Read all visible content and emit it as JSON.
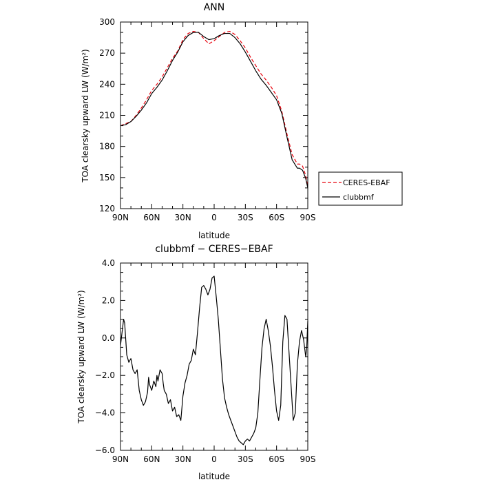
{
  "chart_data": [
    {
      "type": "line",
      "title": "ANN",
      "xlabel": "latitude",
      "ylabel": "TOA clearsky upward LW (W/m²)",
      "xlim": [
        90,
        -90
      ],
      "ylim": [
        120,
        300
      ],
      "x_ticks": [
        {
          "value": 90,
          "label": "90N"
        },
        {
          "value": 60,
          "label": "60N"
        },
        {
          "value": 30,
          "label": "30N"
        },
        {
          "value": 0,
          "label": "0"
        },
        {
          "value": -30,
          "label": "30S"
        },
        {
          "value": -60,
          "label": "60S"
        },
        {
          "value": -90,
          "label": "90S"
        }
      ],
      "y_ticks": [
        {
          "value": 120,
          "label": "120"
        },
        {
          "value": 150,
          "label": "150"
        },
        {
          "value": 180,
          "label": "180"
        },
        {
          "value": 210,
          "label": "210"
        },
        {
          "value": 240,
          "label": "240"
        },
        {
          "value": 270,
          "label": "270"
        },
        {
          "value": 300,
          "label": "300"
        }
      ],
      "legend_position": "right",
      "series": [
        {
          "name": "CERES-EBAF",
          "color": "#e8000b",
          "dash": "dashed",
          "x": [
            90,
            85,
            80,
            75,
            70,
            65,
            60,
            55,
            50,
            45,
            40,
            35,
            30,
            25,
            20,
            15,
            10,
            5,
            0,
            -5,
            -10,
            -15,
            -20,
            -25,
            -30,
            -35,
            -40,
            -45,
            -50,
            -55,
            -60,
            -65,
            -70,
            -75,
            -80,
            -82,
            -85,
            -88,
            -90
          ],
          "y": [
            200,
            202,
            204,
            210,
            217,
            225,
            234,
            240,
            247,
            256,
            265,
            272,
            283,
            289,
            291,
            290,
            284,
            279,
            282,
            286,
            290,
            291,
            288,
            282,
            275,
            266,
            258,
            250,
            244,
            237,
            229,
            214,
            192,
            172,
            163,
            163,
            161,
            152,
            141
          ]
        },
        {
          "name": "clubbmf",
          "color": "#000000",
          "dash": "solid",
          "x": [
            90,
            85,
            80,
            75,
            70,
            65,
            60,
            55,
            50,
            45,
            40,
            35,
            30,
            25,
            20,
            15,
            10,
            5,
            0,
            -5,
            -10,
            -15,
            -20,
            -25,
            -30,
            -35,
            -40,
            -45,
            -50,
            -55,
            -60,
            -65,
            -70,
            -75,
            -80,
            -82,
            -85,
            -88,
            -90
          ],
          "y": [
            200,
            201,
            204,
            209,
            215,
            222,
            231,
            237,
            244,
            253,
            263,
            271,
            281,
            287,
            290,
            290,
            286,
            283,
            284,
            287,
            289,
            289,
            285,
            279,
            271,
            262,
            253,
            245,
            239,
            232,
            225,
            212,
            189,
            167,
            159,
            159,
            157,
            149,
            140
          ]
        }
      ]
    },
    {
      "type": "line",
      "title": "clubbmf − CERES−EBAF",
      "xlabel": "latitude",
      "ylabel": "TOA clearsky upward LW (W/m²)",
      "xlim": [
        90,
        -90
      ],
      "ylim": [
        -6,
        4
      ],
      "x_ticks": [
        {
          "value": 90,
          "label": "90N"
        },
        {
          "value": 60,
          "label": "60N"
        },
        {
          "value": 30,
          "label": "30N"
        },
        {
          "value": 0,
          "label": "0"
        },
        {
          "value": -30,
          "label": "30S"
        },
        {
          "value": -60,
          "label": "60S"
        },
        {
          "value": -90,
          "label": "90S"
        }
      ],
      "y_ticks": [
        {
          "value": -6,
          "label": "−6.0"
        },
        {
          "value": -4,
          "label": "−4.0"
        },
        {
          "value": -2,
          "label": "−2.0"
        },
        {
          "value": 0,
          "label": "0.0"
        },
        {
          "value": 2,
          "label": "2.0"
        },
        {
          "value": 4,
          "label": "4.0"
        }
      ],
      "series": [
        {
          "name": "",
          "color": "#000000",
          "dash": "solid",
          "x": [
            90,
            88.5,
            87,
            86,
            84,
            82,
            80,
            78,
            76,
            74,
            72,
            70,
            68,
            66,
            64,
            63,
            62,
            60,
            58,
            56,
            55,
            54,
            52,
            50,
            49,
            48,
            46,
            44,
            42,
            40,
            38,
            36,
            34,
            32,
            30,
            28,
            26,
            24,
            22,
            20,
            18,
            16,
            14,
            12,
            10,
            8,
            6,
            4,
            2,
            0,
            -2,
            -4,
            -6,
            -8,
            -10,
            -12,
            -14,
            -16,
            -18,
            -20,
            -22,
            -24,
            -26,
            -28,
            -30,
            -32,
            -34,
            -36,
            -38,
            -40,
            -42,
            -44,
            -46,
            -48,
            -50,
            -52,
            -54,
            -56,
            -58,
            -60,
            -62,
            -64,
            -66,
            -68,
            -70,
            -72,
            -74,
            -76,
            -78,
            -80,
            -82,
            -84,
            -86,
            -88,
            -89,
            -90
          ],
          "y": [
            -0.4,
            0.3,
            1.0,
            0.8,
            -0.9,
            -1.3,
            -1.1,
            -1.7,
            -1.9,
            -1.7,
            -2.8,
            -3.3,
            -3.6,
            -3.4,
            -2.9,
            -2.1,
            -2.5,
            -2.8,
            -2.3,
            -2.6,
            -2.0,
            -2.3,
            -1.7,
            -1.9,
            -2.4,
            -2.8,
            -3.0,
            -3.5,
            -3.3,
            -3.9,
            -3.7,
            -4.2,
            -4.1,
            -4.4,
            -3.1,
            -2.4,
            -2.0,
            -1.4,
            -1.2,
            -0.6,
            -0.9,
            0.3,
            1.6,
            2.7,
            2.8,
            2.6,
            2.3,
            2.6,
            3.2,
            3.3,
            2.2,
            1.0,
            -0.6,
            -2.2,
            -3.2,
            -3.7,
            -4.1,
            -4.4,
            -4.7,
            -5.0,
            -5.3,
            -5.5,
            -5.6,
            -5.7,
            -5.5,
            -5.4,
            -5.5,
            -5.3,
            -5.1,
            -4.8,
            -4.0,
            -2.2,
            -0.5,
            0.5,
            1.0,
            0.4,
            -0.4,
            -1.5,
            -2.8,
            -3.9,
            -4.4,
            -3.6,
            -0.2,
            1.2,
            1.0,
            -0.8,
            -2.6,
            -4.4,
            -4.0,
            -1.4,
            -0.2,
            0.4,
            -0.1,
            -1.0,
            -0.5,
            0.9
          ]
        }
      ]
    }
  ]
}
